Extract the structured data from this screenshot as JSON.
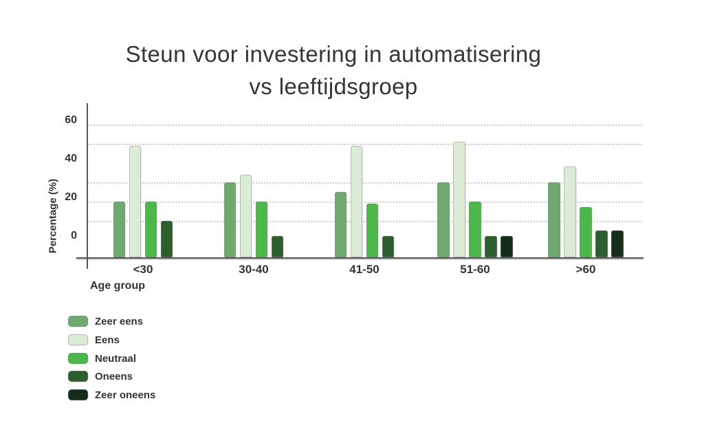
{
  "title": {
    "line1": "Steun voor investering in automatisering",
    "line2": "vs leeftijdsgroep"
  },
  "chart_data": {
    "type": "bar",
    "title": "Steun voor investering in automatisering vs leeftijdsgroep",
    "xlabel": "Age group",
    "ylabel": "Percentage (%)",
    "categories": [
      "<30",
      "30-40",
      "41-50",
      "51-60",
      ">60"
    ],
    "series": [
      {
        "name": "Zeer eens",
        "color": "#6fa96f",
        "values": [
          19,
          29,
          24,
          29,
          29
        ]
      },
      {
        "name": "Eens",
        "color": "#dcead8",
        "values": [
          48,
          33,
          48,
          50,
          37
        ]
      },
      {
        "name": "Neutraal",
        "color": "#4cb84c",
        "values": [
          19,
          19,
          18,
          19,
          16
        ]
      },
      {
        "name": "Oneens",
        "color": "#2d5e2d",
        "values": [
          9,
          1,
          1,
          1,
          4
        ]
      },
      {
        "name": "Zeer oneens",
        "color": "#142d1a",
        "values": [
          null,
          null,
          null,
          1,
          4
        ]
      }
    ],
    "y_ticks": [
      60,
      40,
      20,
      0
    ],
    "gridline_values": [
      60,
      50,
      30,
      20,
      10
    ],
    "ylim": [
      -10,
      65
    ],
    "grid": "dotted",
    "legend_position": "bottom-left"
  }
}
